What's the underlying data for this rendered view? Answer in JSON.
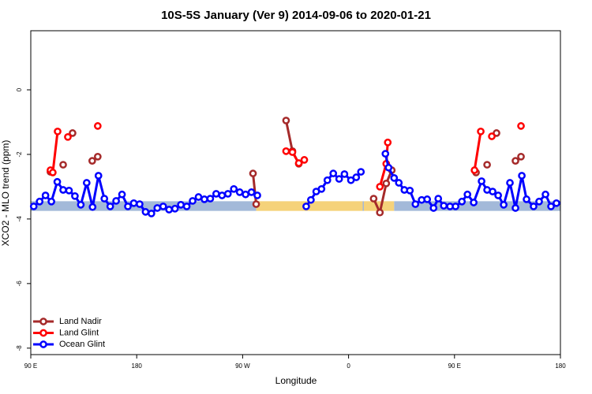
{
  "chart_data": {
    "type": "line",
    "title": "10S-5S January (Ver 9)   2014-09-06 to 2020-01-21",
    "x_label": "Longitude",
    "y_label": "XCO2 - MLO trend (ppm)",
    "xlim": [
      90,
      540
    ],
    "ylim": [
      -8.2,
      1.83
    ],
    "xticks": [
      {
        "value": 90,
        "label": "90 E"
      },
      180,
      {
        "value": 270,
        "label": "90 W"
      },
      {
        "value": 360,
        "label": "0"
      },
      {
        "value": 450,
        "label": "90 E"
      },
      {
        "value": 540,
        "label": "180"
      }
    ],
    "yticks": [
      -8,
      -6,
      -4,
      -2,
      0
    ],
    "legend": "bottom-left",
    "band": {
      "y": [
        -3.75,
        -3.45
      ],
      "segments": [
        {
          "x": [
            90,
            281.5
          ],
          "color": "#a3b9d9"
        },
        {
          "x": [
            281.5,
            372
          ],
          "color": "#f5d27a"
        },
        {
          "x": [
            372,
            373
          ],
          "color": "#a3b9d9"
        },
        {
          "x": [
            373,
            398.7
          ],
          "color": "#f5d27a"
        },
        {
          "x": [
            398.7,
            540
          ],
          "color": "#a3b9d9"
        }
      ]
    },
    "series": [
      {
        "name": "Land Nadir",
        "color": "#a52a2a",
        "x": [
          106.7,
          null,
          117.5,
          null,
          125.5,
          null,
          142.2,
          146.9,
          null,
          278.8,
          281.5,
          null,
          306.9,
          312.3,
          317.7,
          null,
          381.3,
          386.6,
          392,
          396.7,
          null,
          468.3,
          null,
          477.7,
          null,
          485.7,
          null,
          501.8,
          506.5
        ],
        "values": [
          -2.54,
          null,
          -2.32,
          null,
          -1.34,
          null,
          -2.2,
          -2.07,
          null,
          -2.59,
          -3.54,
          null,
          -0.95,
          -1.9,
          -2.29,
          null,
          -3.37,
          -3.8,
          -2.9,
          -2.49,
          null,
          -2.56,
          null,
          -2.32,
          null,
          -1.34,
          null,
          -2.2,
          -2.07
        ]
      },
      {
        "name": "Land Glint",
        "color": "#ff0000",
        "x": [
          106.7,
          108.7,
          112.8,
          null,
          121.5,
          null,
          146.9,
          null,
          306.9,
          312.3,
          317.7,
          322.4,
          null,
          386.6,
          392,
          393.3,
          null,
          467,
          472.3,
          null,
          481.7,
          null,
          506.5
        ],
        "values": [
          -2.49,
          -2.56,
          -1.29,
          null,
          -1.46,
          null,
          -1.12,
          null,
          -1.9,
          -1.93,
          -2.27,
          -2.17,
          null,
          -3.0,
          -2.29,
          -1.63,
          null,
          -2.49,
          -1.29,
          null,
          -1.44,
          null,
          -1.12
        ]
      },
      {
        "name": "Ocean Glint",
        "color": "#0000ff",
        "x": [
          92.5,
          97.5,
          102.5,
          107.5,
          112.5,
          117.5,
          122.5,
          127.5,
          132.5,
          137.5,
          142.5,
          147.5,
          152.5,
          157.5,
          162.5,
          167.5,
          172.5,
          177.5,
          182.5,
          187.5,
          192.5,
          197.5,
          202.5,
          207.5,
          212.5,
          217.5,
          222.5,
          227.5,
          232.5,
          237.5,
          242.5,
          247.5,
          252.5,
          257.5,
          262.5,
          267.5,
          272.5,
          277.5,
          282.5,
          null,
          324,
          328,
          332.5,
          337,
          342,
          347,
          352,
          356.5,
          362,
          366.5,
          370.5,
          null,
          391.3,
          394,
          398.7,
          402.7,
          407.4,
          412.1,
          416.8,
          422.1,
          426.8,
          432.2,
          436.2,
          440.9,
          446.2,
          450.9,
          456.3,
          461,
          466.3,
          473,
          477.7,
          482.4,
          487.1,
          491.8,
          497.1,
          501.8,
          507.2,
          511.2,
          517.2,
          521.9,
          527.3,
          532,
          536.6
        ],
        "values": [
          -3.61,
          -3.46,
          -3.27,
          -3.46,
          -2.85,
          -3.1,
          -3.12,
          -3.29,
          -3.56,
          -2.88,
          -3.63,
          -2.66,
          -3.37,
          -3.61,
          -3.44,
          -3.24,
          -3.61,
          -3.51,
          -3.54,
          -3.78,
          -3.83,
          -3.66,
          -3.61,
          -3.71,
          -3.68,
          -3.56,
          -3.61,
          -3.44,
          -3.32,
          -3.39,
          -3.37,
          -3.22,
          -3.27,
          -3.22,
          -3.07,
          -3.17,
          -3.24,
          -3.17,
          -3.27,
          null,
          -3.61,
          -3.41,
          -3.15,
          -3.07,
          -2.8,
          -2.59,
          -2.76,
          -2.61,
          -2.8,
          -2.71,
          -2.54,
          null,
          -1.98,
          -2.41,
          -2.73,
          -2.88,
          -3.1,
          -3.12,
          -3.54,
          -3.41,
          -3.39,
          -3.66,
          -3.37,
          -3.59,
          -3.61,
          -3.61,
          -3.46,
          -3.24,
          -3.49,
          -2.83,
          -3.1,
          -3.15,
          -3.27,
          -3.56,
          -2.88,
          -3.66,
          -2.66,
          -3.39,
          -3.61,
          -3.46,
          -3.24,
          -3.61,
          -3.51
        ]
      }
    ]
  }
}
